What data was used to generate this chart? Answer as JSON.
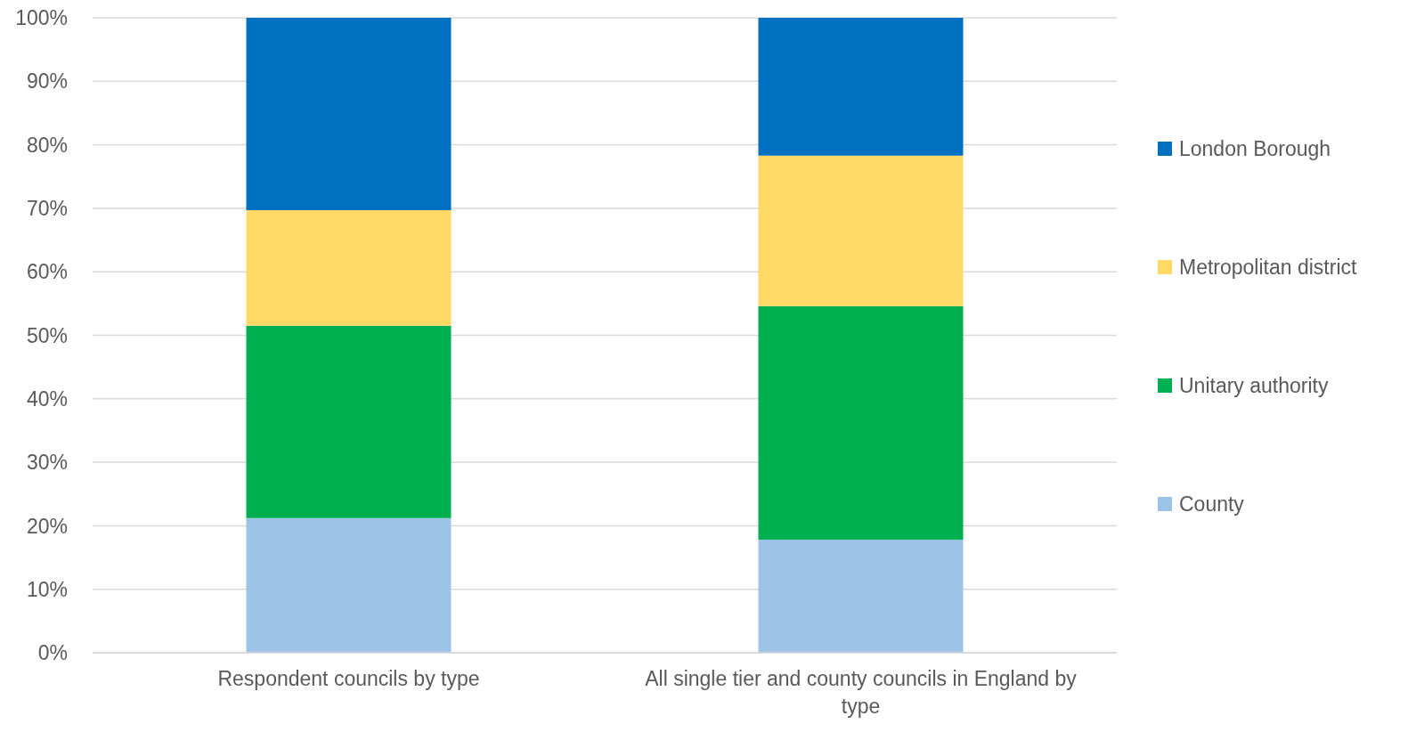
{
  "chart_data": {
    "type": "bar",
    "categories": [
      "Respondent councils by type",
      "All single tier and county councils in England by type"
    ],
    "series": [
      {
        "name": "County",
        "color": "#9dc3e6",
        "values": [
          21.2,
          17.8
        ]
      },
      {
        "name": "Unitary authority",
        "color": "#00b050",
        "values": [
          30.3,
          36.8
        ]
      },
      {
        "name": "Metropolitan district",
        "color": "#ffd966",
        "values": [
          18.2,
          23.7
        ]
      },
      {
        "name": "London Borough",
        "color": "#0070c0",
        "values": [
          30.3,
          21.7
        ]
      }
    ],
    "stacked": true,
    "ylim": [
      0,
      100
    ],
    "yticks": [
      {
        "value": 0,
        "label": "0%"
      },
      {
        "value": 10,
        "label": "10%"
      },
      {
        "value": 20,
        "label": "20%"
      },
      {
        "value": 30,
        "label": "30%"
      },
      {
        "value": 40,
        "label": "40%"
      },
      {
        "value": 50,
        "label": "50%"
      },
      {
        "value": 60,
        "label": "60%"
      },
      {
        "value": 70,
        "label": "70%"
      },
      {
        "value": 80,
        "label": "80%"
      },
      {
        "value": 90,
        "label": "90%"
      },
      {
        "value": 100,
        "label": "100%"
      }
    ],
    "grid": "y",
    "legend": "right"
  }
}
